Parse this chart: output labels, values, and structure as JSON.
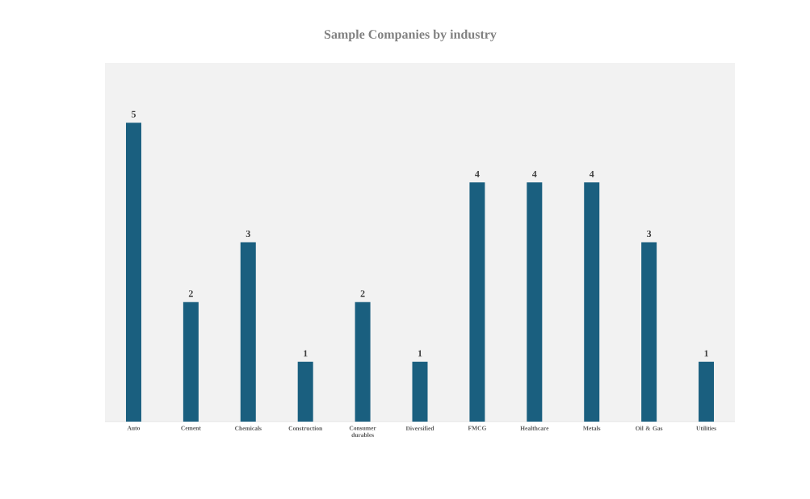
{
  "chart_data": {
    "type": "bar",
    "title": "Sample Companies by industry",
    "categories": [
      "Auto",
      "Cement",
      "Chemicals",
      "Construction",
      "Consumer durables",
      "Diversified",
      "FMCG",
      "Healthcare",
      "Metals",
      "Oil & Gas",
      "Utilities"
    ],
    "values": [
      5,
      2,
      3,
      1,
      2,
      1,
      4,
      4,
      4,
      3,
      1
    ],
    "color": "#1a5f7f",
    "data_labels": true
  }
}
